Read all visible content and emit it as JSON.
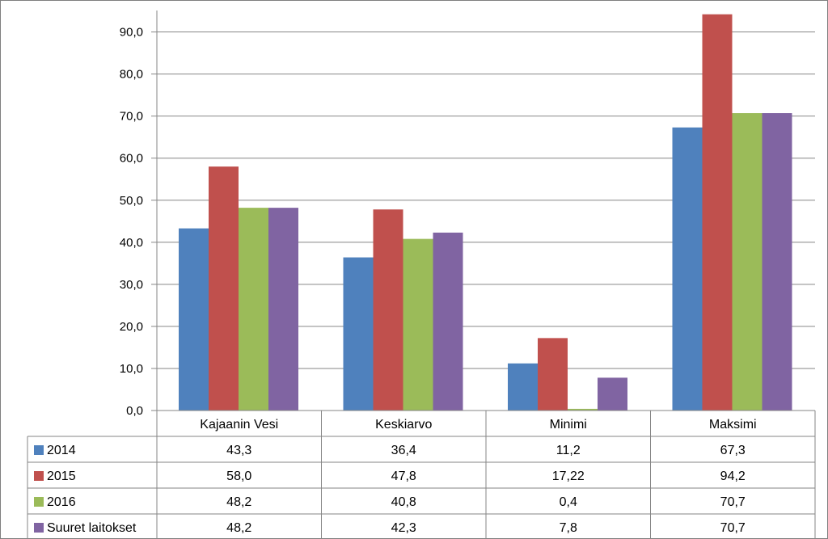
{
  "chart_data": {
    "type": "bar",
    "title": "",
    "xlabel": "",
    "ylabel": "",
    "ylim": [
      0,
      90
    ],
    "yticks": [
      "0,0",
      "10,0",
      "20,0",
      "30,0",
      "40,0",
      "50,0",
      "60,0",
      "70,0",
      "80,0",
      "90,0"
    ],
    "categories": [
      "Kajaanin Vesi",
      "Keskiarvo",
      "Minimi",
      "Maksimi"
    ],
    "grid": true,
    "legend": "data-table-left",
    "series": [
      {
        "name": "2014",
        "color": "#4f81bd",
        "values": [
          43.3,
          36.4,
          11.2,
          67.3
        ],
        "labels": [
          "43,3",
          "36,4",
          "11,2",
          "67,3"
        ]
      },
      {
        "name": "2015",
        "color": "#c0504d",
        "values": [
          58.0,
          47.8,
          17.22,
          94.2
        ],
        "labels": [
          "58,0",
          "47,8",
          "17,22",
          "94,2"
        ]
      },
      {
        "name": "2016",
        "color": "#9bbb59",
        "values": [
          48.2,
          40.8,
          0.4,
          70.7
        ],
        "labels": [
          "48,2",
          "40,8",
          "0,4",
          "70,7"
        ]
      },
      {
        "name": "Suuret laitokset",
        "color": "#8064a2",
        "values": [
          48.2,
          42.3,
          7.8,
          70.7
        ],
        "labels": [
          "48,2",
          "42,3",
          "7,8",
          "70,7"
        ]
      }
    ]
  }
}
